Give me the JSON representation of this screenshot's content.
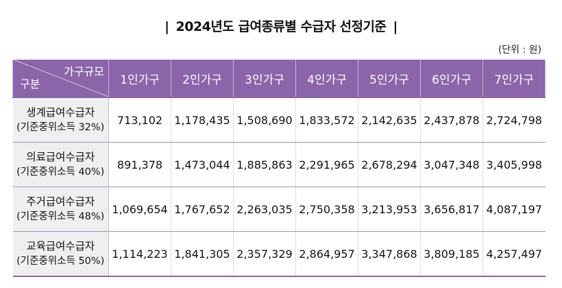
{
  "title": "2024년도 급여종류별 수급자 선정기준",
  "unit": "(단위 : 원)",
  "table": {
    "corner_top": "가구규모",
    "corner_bottom": "구분",
    "columns": [
      "1인가구",
      "2인가구",
      "3인가구",
      "4인가구",
      "5인가구",
      "6인가구",
      "7인가구"
    ],
    "rows": [
      {
        "name": "생계급여수급자",
        "sub": "(기준중위소득 32%)",
        "values": [
          "713,102",
          "1,178,435",
          "1,508,690",
          "1,833,572",
          "2,142,635",
          "2,437,878",
          "2,724,798"
        ]
      },
      {
        "name": "의료급여수급자",
        "sub": "(기준중위소득 40%)",
        "values": [
          "891,378",
          "1,473,044",
          "1,885,863",
          "2,291,965",
          "2,678,294",
          "3,047,348",
          "3,405,998"
        ]
      },
      {
        "name": "주거급여수급자",
        "sub": "(기준중위소득 48%)",
        "values": [
          "1,069,654",
          "1,767,652",
          "2,263,035",
          "2,750,358",
          "3,213,953",
          "3,656,817",
          "4,087,197"
        ]
      },
      {
        "name": "교육급여수급자",
        "sub": "(기준중위소득 50%)",
        "values": [
          "1,114,223",
          "1,841,305",
          "2,357,329",
          "2,864,957",
          "3,347,868",
          "3,809,185",
          "4,257,497"
        ]
      }
    ]
  }
}
